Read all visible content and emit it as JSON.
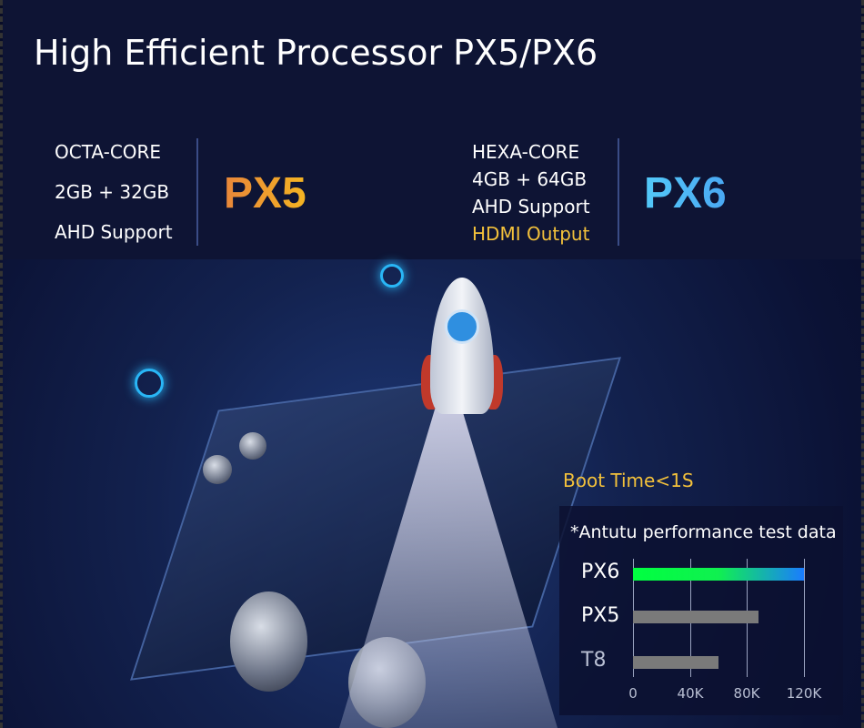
{
  "title": "High Efficient Processor PX5/PX6",
  "px5": {
    "name": "PX5",
    "specs": [
      "OCTA-CORE",
      "2GB + 32GB",
      "AHD Support"
    ]
  },
  "px6": {
    "name": "PX6",
    "specs": [
      "HEXA-CORE",
      "4GB + 64GB",
      "AHD Support",
      "HDMI Output"
    ]
  },
  "boot_time": "Boot Time<1S",
  "colors": {
    "px5": "#f09a30",
    "px6": "#4fb8f6",
    "highlight": "#f3c13b",
    "background": "#0e1434"
  },
  "chart_data": {
    "type": "bar",
    "orientation": "horizontal",
    "title": "*Antutu performance test data",
    "categories": [
      "PX6",
      "PX5",
      "T8"
    ],
    "values": [
      120000,
      88000,
      60000
    ],
    "xlim": [
      0,
      120000
    ],
    "xticks": [
      "0",
      "40K",
      "80K",
      "120K"
    ],
    "grid": true,
    "bar_colors": [
      "gradient #00ff40→#1a7cff",
      "#7a7a7a",
      "#7a7a7a"
    ]
  }
}
